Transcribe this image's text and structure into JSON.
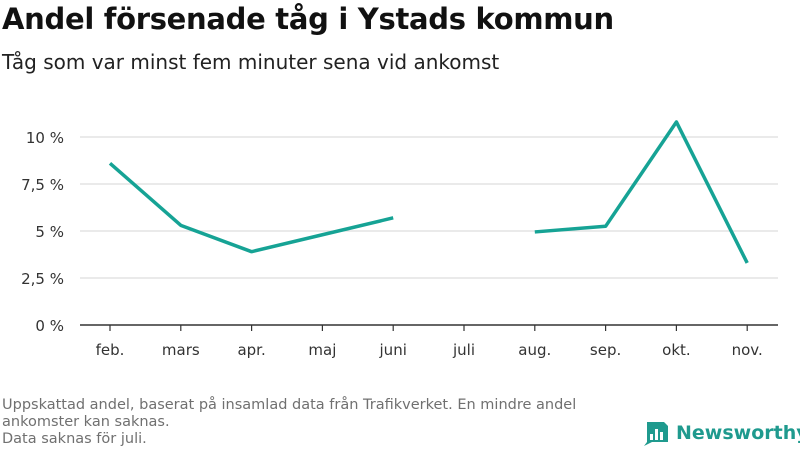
{
  "title": "Andel försenade tåg i Ystads kommun",
  "subtitle": "Tåg som var minst fem minuter sena vid ankomst",
  "footer": {
    "line1": "Uppskattad andel, baserat på insamlad data från Trafikverket. En mindre andel",
    "line2": "ankomster kan saknas.",
    "line3": "Data saknas för juli."
  },
  "brand": {
    "name": "Newsworthy",
    "icon": "newsworthy-logo-icon",
    "color": "#1f9a8e"
  },
  "chart_data": {
    "type": "line",
    "categories": [
      "feb.",
      "mars",
      "apr.",
      "maj",
      "juni",
      "juli",
      "aug.",
      "sep.",
      "okt.",
      "nov."
    ],
    "series": [
      {
        "values": [
          8.6,
          5.3,
          3.9,
          4.8,
          5.7,
          null,
          4.95,
          5.25,
          10.8,
          3.3
        ]
      }
    ],
    "yticks": [
      0,
      2.5,
      5,
      7.5,
      10
    ],
    "ytick_labels": [
      "0 %",
      "2,5 %",
      "5 %",
      "7,5 %",
      "10 %"
    ],
    "ylim": [
      0,
      10
    ],
    "xlabel": "",
    "ylabel": "",
    "grid": true,
    "colors": {
      "line": "#16a395",
      "grid": "#dddddd",
      "axis": "#333333",
      "text": "#333333"
    }
  }
}
